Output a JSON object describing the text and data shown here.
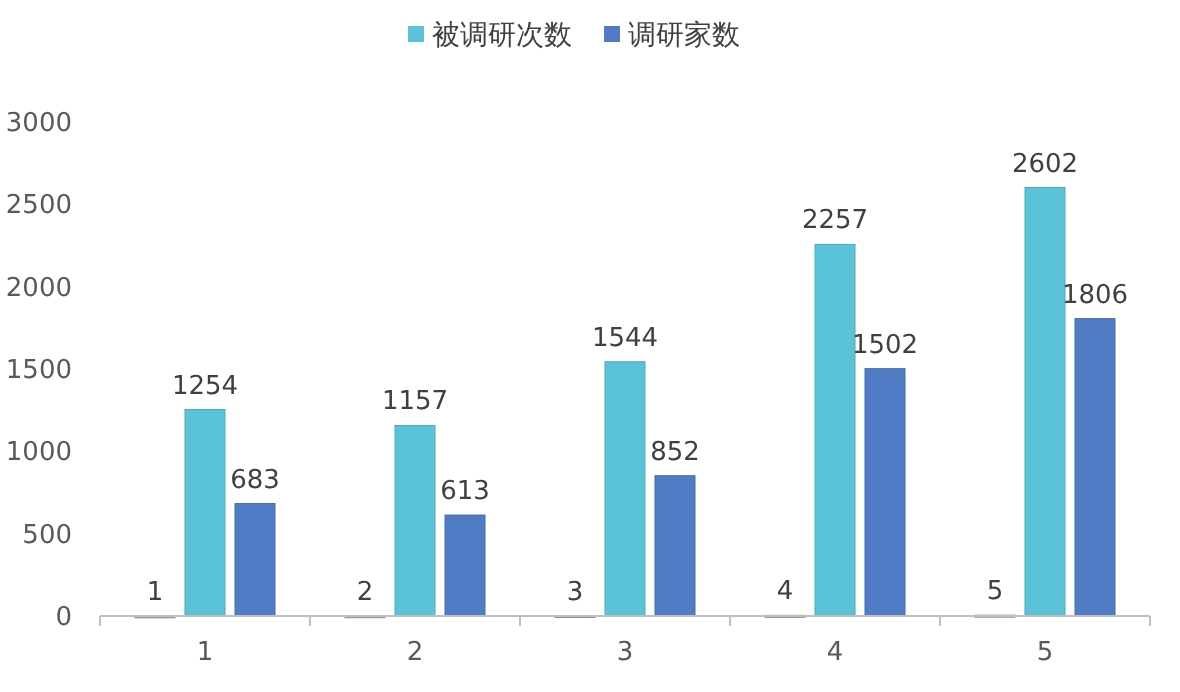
{
  "chart_data": {
    "type": "bar",
    "categories": [
      "1",
      "2",
      "3",
      "4",
      "5"
    ],
    "series": [
      {
        "color": "#a5a5a5",
        "values": [
          1,
          2,
          3,
          4,
          5
        ]
      },
      {
        "name": "被调研次数",
        "color": "#5bc3d7",
        "values": [
          1254,
          1157,
          1544,
          2257,
          2602
        ]
      },
      {
        "name": "调研家数",
        "color": "#4f7cc4",
        "values": [
          683,
          613,
          852,
          1502,
          1806
        ]
      }
    ],
    "ylim": [
      0,
      3000
    ],
    "yticks": [
      0,
      500,
      1000,
      1500,
      2000,
      2500,
      3000
    ],
    "grid": false,
    "legend": "top",
    "data_labels": true
  }
}
